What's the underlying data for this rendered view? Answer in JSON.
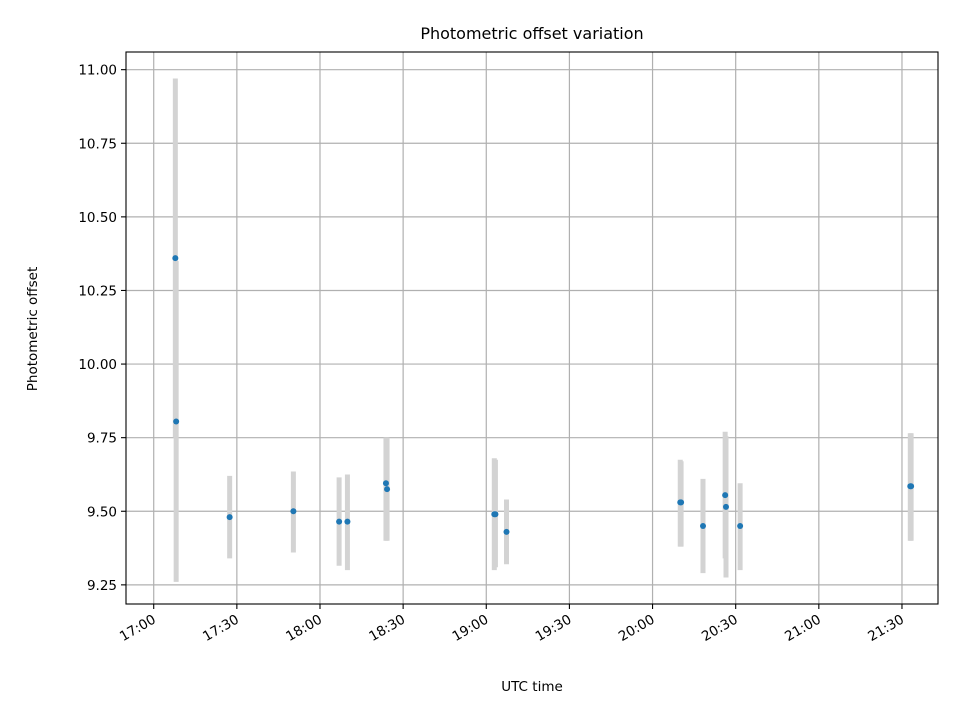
{
  "chart_data": {
    "type": "scatter",
    "title": "Photometric offset variation",
    "xlabel": "UTC time",
    "ylabel": "Photometric offset",
    "x_unit": "UTC time (HH:MM)",
    "xlim": [
      "16:50",
      "21:43"
    ],
    "ylim": [
      9.185,
      11.06
    ],
    "xticks": [
      "17:00",
      "17:30",
      "18:00",
      "18:30",
      "19:00",
      "19:30",
      "20:00",
      "20:30",
      "21:00",
      "21:30"
    ],
    "yticks": [
      "9.25",
      "9.50",
      "9.75",
      "10.00",
      "10.25",
      "10.50",
      "10.75",
      "11.00"
    ],
    "grid": true,
    "point_color": "#1f77b4",
    "errorbar_color": "#d3d3d3",
    "points": [
      {
        "time": "17:07:48",
        "y": 10.36,
        "ylow": 9.75,
        "yhigh": 10.97
      },
      {
        "time": "17:08:06",
        "y": 9.805,
        "ylow": 9.26,
        "yhigh": 10.35
      },
      {
        "time": "17:27:24",
        "y": 9.48,
        "ylow": 9.34,
        "yhigh": 9.62
      },
      {
        "time": "17:50:24",
        "y": 9.5,
        "ylow": 9.36,
        "yhigh": 9.635
      },
      {
        "time": "18:06:54",
        "y": 9.465,
        "ylow": 9.315,
        "yhigh": 9.615
      },
      {
        "time": "18:09:54",
        "y": 9.465,
        "ylow": 9.3,
        "yhigh": 9.625
      },
      {
        "time": "18:23:48",
        "y": 9.595,
        "ylow": 9.4,
        "yhigh": 9.75
      },
      {
        "time": "18:24:12",
        "y": 9.575,
        "ylow": 9.4,
        "yhigh": 9.75
      },
      {
        "time": "19:02:54",
        "y": 9.49,
        "ylow": 9.3,
        "yhigh": 9.68
      },
      {
        "time": "19:03:18",
        "y": 9.49,
        "ylow": 9.31,
        "yhigh": 9.675
      },
      {
        "time": "19:07:18",
        "y": 9.43,
        "ylow": 9.32,
        "yhigh": 9.54
      },
      {
        "time": "20:10:00",
        "y": 9.53,
        "ylow": 9.38,
        "yhigh": 9.675
      },
      {
        "time": "20:10:18",
        "y": 9.53,
        "ylow": 9.38,
        "yhigh": 9.67
      },
      {
        "time": "20:18:12",
        "y": 9.45,
        "ylow": 9.29,
        "yhigh": 9.61
      },
      {
        "time": "20:26:12",
        "y": 9.555,
        "ylow": 9.34,
        "yhigh": 9.77
      },
      {
        "time": "20:26:30",
        "y": 9.515,
        "ylow": 9.275,
        "yhigh": 9.755
      },
      {
        "time": "20:31:36",
        "y": 9.45,
        "ylow": 9.3,
        "yhigh": 9.595
      },
      {
        "time": "21:33:00",
        "y": 9.585,
        "ylow": 9.4,
        "yhigh": 9.765
      },
      {
        "time": "21:33:18",
        "y": 9.585,
        "ylow": 9.4,
        "yhigh": 9.765
      }
    ]
  }
}
